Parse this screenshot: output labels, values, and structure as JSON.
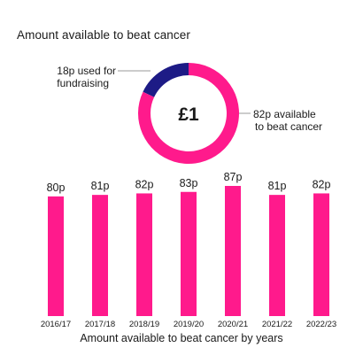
{
  "title": "Amount available to beat cancer",
  "colors": {
    "accent": "#ff1a8c",
    "dark": "#1d1b86",
    "text": "#1a1a1a",
    "leader": "#9a9a9a"
  },
  "chart_data": [
    {
      "type": "pie",
      "variant": "donut",
      "center_label": "£1",
      "slices": [
        {
          "label": "18p used for fundraising",
          "label_lines": [
            "18p used for",
            "fundraising"
          ],
          "value": 18,
          "color": "#1d1b86"
        },
        {
          "label": "82p available to beat cancer",
          "label_lines": [
            "82p available",
            "to beat cancer"
          ],
          "value": 82,
          "color": "#ff1a8c"
        }
      ]
    },
    {
      "type": "bar",
      "categories": [
        "2016/17",
        "2017/18",
        "2018/19",
        "2019/20",
        "2020/21",
        "2021/22",
        "2022/23"
      ],
      "values": [
        80,
        81,
        82,
        83,
        87,
        81,
        82
      ],
      "value_labels": [
        "80p",
        "81p",
        "82p",
        "83p",
        "87p",
        "81p",
        "82p"
      ],
      "xlabel": "Amount available to beat cancer by years",
      "ylabel": "",
      "ylim": [
        0,
        87
      ],
      "color": "#ff1a8c",
      "grid": false
    }
  ]
}
